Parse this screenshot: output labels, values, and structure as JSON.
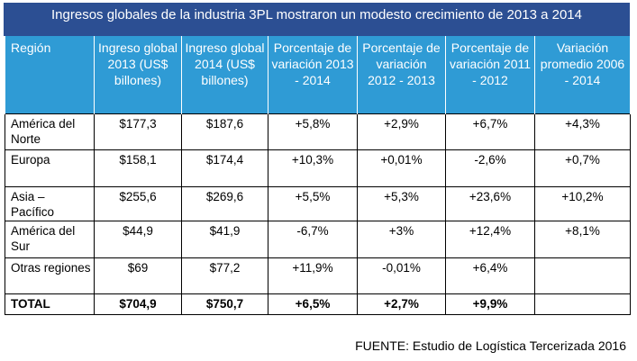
{
  "title": "Ingresos globales de la industria 3PL mostraron un modesto crecimiento de 2013 a 2014",
  "headers": [
    "Región",
    "Ingreso global 2013 (US$ billones)",
    "Ingreso global 2014 (US$ billones)",
    "Porcentaje de variación 2013 - 2014",
    "Porcentaje de variación 2012 - 2013",
    "Porcentaje de variación 2011 - 2012",
    "Variación promedio 2006 - 2014"
  ],
  "rows": [
    {
      "region": "América del Norte",
      "ing2013": "$177,3",
      "ing2014": "$187,6",
      "var1314": "+5,8%",
      "var1213": "+2,9%",
      "var1112": "+6,7%",
      "prom": "+4,3%"
    },
    {
      "region": "Europa",
      "ing2013": "$158,1",
      "ing2014": "$174,4",
      "var1314": "+10,3%",
      "var1213": "+0,01%",
      "var1112": "-2,6%",
      "prom": "+0,7%"
    },
    {
      "region": "Asia – Pacífico",
      "ing2013": "$255,6",
      "ing2014": "$269,6",
      "var1314": "+5,5%",
      "var1213": "+5,3%",
      "var1112": "+23,6%",
      "prom": "+10,2%"
    },
    {
      "region": "América del Sur",
      "ing2013": "$44,9",
      "ing2014": "$41,9",
      "var1314": "-6,7%",
      "var1213": "+3%",
      "var1112": "+12,4%",
      "prom": "+8,1%"
    },
    {
      "region": "Otras regiones",
      "ing2013": "$69",
      "ing2014": "$77,2",
      "var1314": "+11,9%",
      "var1213": "-0,01%",
      "var1112": "+6,4%",
      "prom": ""
    },
    {
      "region": "TOTAL",
      "ing2013": "$704,9",
      "ing2014": "$750,7",
      "var1314": "+6,5%",
      "var1213": "+2,7%",
      "var1112": "+9,9%",
      "prom": ""
    }
  ],
  "source": "FUENTE: Estudio de Logística Tercerizada 2016"
}
